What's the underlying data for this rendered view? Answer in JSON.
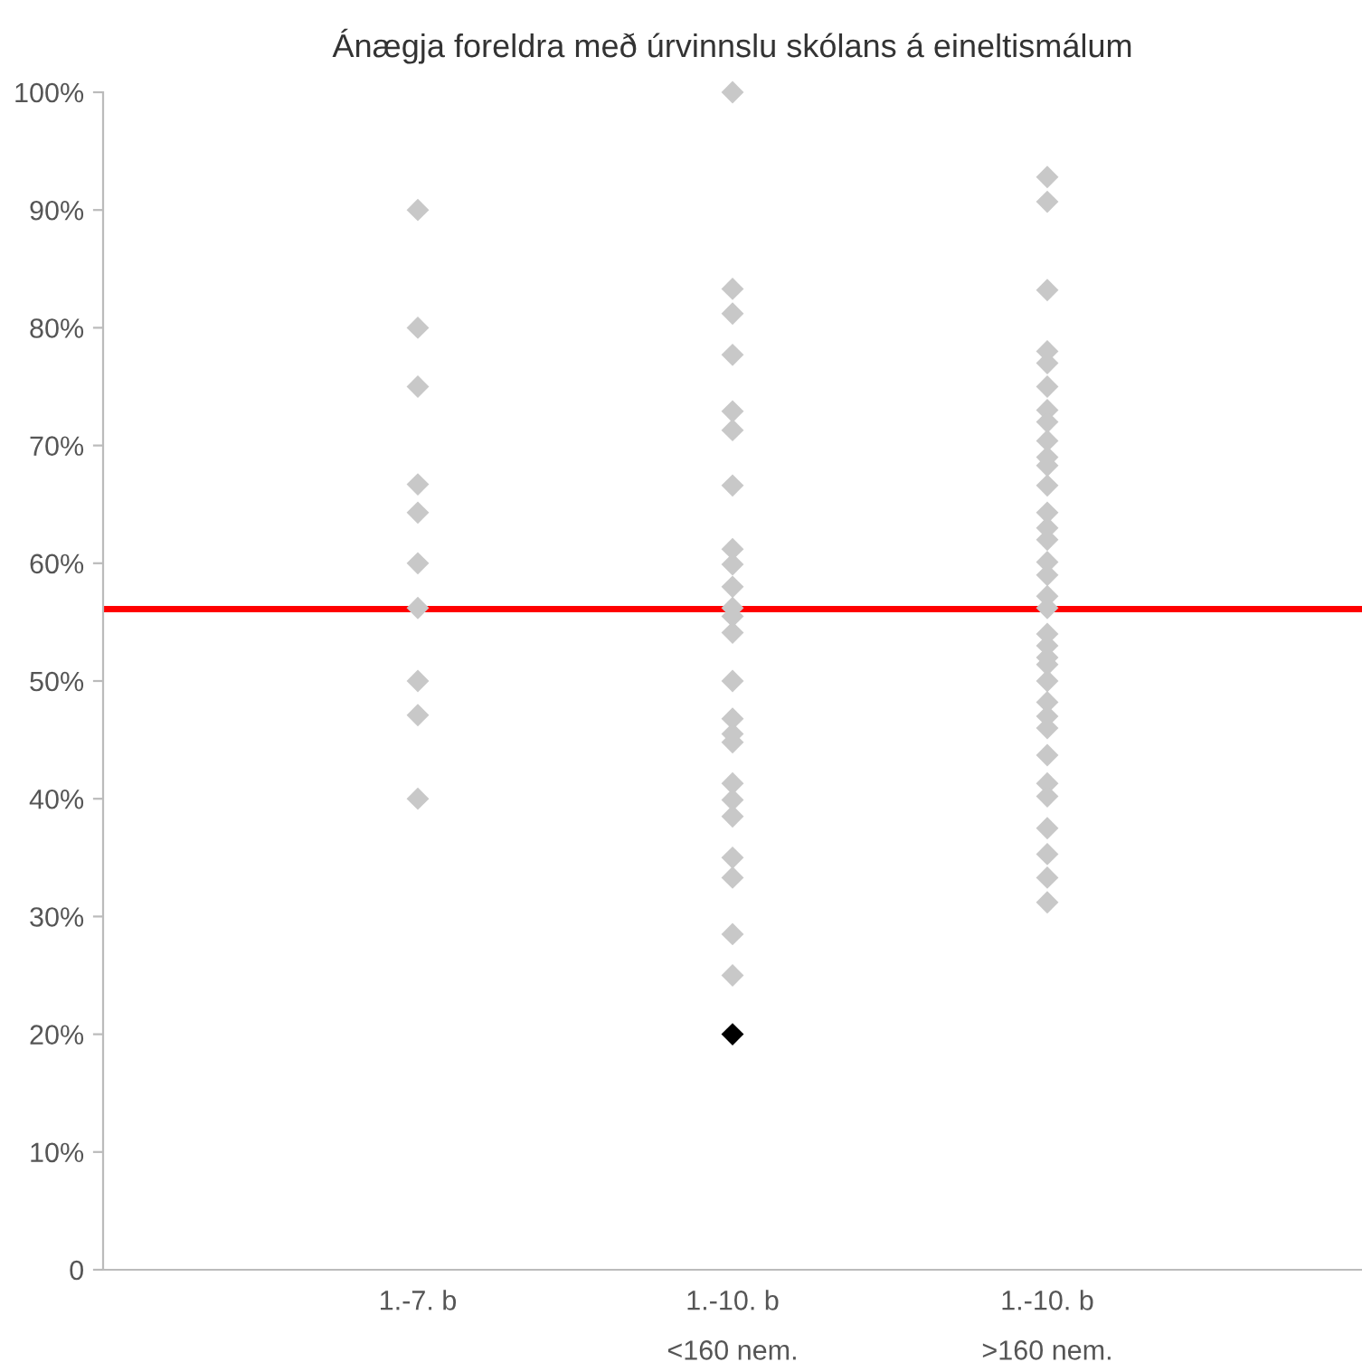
{
  "chart_data": {
    "type": "scatter",
    "title": "Ánægja foreldra með úrvinnslu skólans á eineltismálum",
    "categories": [
      "1.-7. b",
      "1.-10. b\n<160 nem.",
      "1.-10. b\n>160 nem."
    ],
    "series": [
      {
        "color": "#c8c8c8",
        "x": [
          "1.-7. b",
          "1.-7. b",
          "1.-7. b",
          "1.-7. b",
          "1.-7. b",
          "1.-7. b",
          "1.-7. b",
          "1.-7. b",
          "1.-7. b",
          "1.-7. b"
        ],
        "values": [
          90,
          80,
          75,
          66.7,
          64.3,
          60,
          56.2,
          50,
          47.1,
          40
        ]
      },
      {
        "color": "#c8c8c8",
        "colors": [
          "#c8c8c8",
          "#c8c8c8",
          "#c8c8c8",
          "#c8c8c8",
          "#c8c8c8",
          "#c8c8c8",
          "#c8c8c8",
          "#c8c8c8",
          "#c8c8c8",
          "#c8c8c8",
          "#c8c8c8",
          "#c8c8c8",
          "#c8c8c8",
          "#c8c8c8",
          "#c8c8c8",
          "#c8c8c8",
          "#c8c8c8",
          "#c8c8c8",
          "#c8c8c8",
          "#c8c8c8",
          "#c8c8c8",
          "#c8c8c8",
          "#c8c8c8",
          "#c8c8c8",
          "#000000"
        ],
        "x": [
          "1.-10. b\n<160 nem.",
          "1.-10. b\n<160 nem.",
          "1.-10. b\n<160 nem.",
          "1.-10. b\n<160 nem.",
          "1.-10. b\n<160 nem.",
          "1.-10. b\n<160 nem.",
          "1.-10. b\n<160 nem.",
          "1.-10. b\n<160 nem.",
          "1.-10. b\n<160 nem.",
          "1.-10. b\n<160 nem.",
          "1.-10. b\n<160 nem.",
          "1.-10. b\n<160 nem.",
          "1.-10. b\n<160 nem.",
          "1.-10. b\n<160 nem.",
          "1.-10. b\n<160 nem.",
          "1.-10. b\n<160 nem.",
          "1.-10. b\n<160 nem.",
          "1.-10. b\n<160 nem.",
          "1.-10. b\n<160 nem.",
          "1.-10. b\n<160 nem.",
          "1.-10. b\n<160 nem.",
          "1.-10. b\n<160 nem.",
          "1.-10. b\n<160 nem.",
          "1.-10. b\n<160 nem.",
          "1.-10. b\n<160 nem."
        ],
        "values": [
          100,
          83.3,
          81.2,
          77.7,
          72.9,
          71.3,
          66.6,
          61.2,
          59.9,
          58,
          56.2,
          55.5,
          54.1,
          50,
          46.8,
          45.5,
          44.8,
          41.3,
          39.9,
          38.5,
          35,
          33.3,
          28.5,
          25,
          20
        ]
      },
      {
        "color": "#c8c8c8",
        "x": [
          "1.-10. b\n>160 nem.",
          "1.-10. b\n>160 nem.",
          "1.-10. b\n>160 nem.",
          "1.-10. b\n>160 nem.",
          "1.-10. b\n>160 nem.",
          "1.-10. b\n>160 nem.",
          "1.-10. b\n>160 nem.",
          "1.-10. b\n>160 nem.",
          "1.-10. b\n>160 nem.",
          "1.-10. b\n>160 nem.",
          "1.-10. b\n>160 nem.",
          "1.-10. b\n>160 nem.",
          "1.-10. b\n>160 nem.",
          "1.-10. b\n>160 nem.",
          "1.-10. b\n>160 nem.",
          "1.-10. b\n>160 nem.",
          "1.-10. b\n>160 nem.",
          "1.-10. b\n>160 nem.",
          "1.-10. b\n>160 nem.",
          "1.-10. b\n>160 nem.",
          "1.-10. b\n>160 nem.",
          "1.-10. b\n>160 nem.",
          "1.-10. b\n>160 nem.",
          "1.-10. b\n>160 nem.",
          "1.-10. b\n>160 nem.",
          "1.-10. b\n>160 nem.",
          "1.-10. b\n>160 nem.",
          "1.-10. b\n>160 nem.",
          "1.-10. b\n>160 nem.",
          "1.-10. b\n>160 nem.",
          "1.-10. b\n>160 nem.",
          "1.-10. b\n>160 nem.",
          "1.-10. b\n>160 nem.",
          "1.-10. b\n>160 nem."
        ],
        "values": [
          92.8,
          90.7,
          83.2,
          78,
          77,
          75,
          73,
          72,
          70.4,
          69,
          68.3,
          66.6,
          64.3,
          63,
          62,
          60.1,
          59,
          57.2,
          54,
          53,
          52,
          51.4,
          50,
          48.2,
          47,
          46,
          43.7,
          41.3,
          40.2,
          37.5,
          35.3,
          33.3,
          31.2,
          56.2
        ]
      }
    ],
    "ylim": [
      0,
      100
    ],
    "yticks": [
      0,
      {
        "value": 10,
        "label": "10%"
      },
      {
        "value": 20,
        "label": "20%"
      },
      {
        "value": 30,
        "label": "30%"
      },
      {
        "value": 40,
        "label": "40%"
      },
      {
        "value": 50,
        "label": "50%"
      },
      {
        "value": 60,
        "label": "60%"
      },
      {
        "value": 70,
        "label": "70%"
      },
      {
        "value": 80,
        "label": "80%"
      },
      {
        "value": 90,
        "label": "90%"
      },
      {
        "value": 100,
        "label": "100%"
      }
    ],
    "ref_lines": [
      {
        "axis": "y",
        "value": 56.1,
        "color": "#ff0000"
      }
    ],
    "marker": "diamond",
    "grid": false,
    "legend": false
  }
}
